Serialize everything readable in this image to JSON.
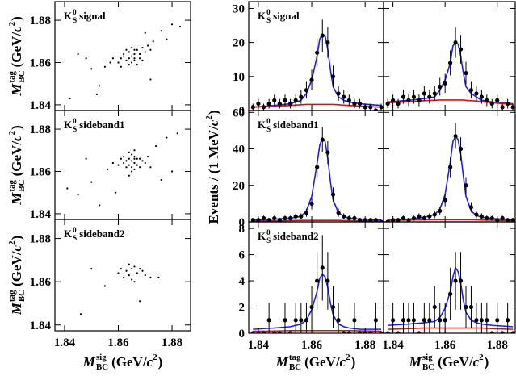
{
  "particle": {
    "symbol": "K",
    "sub": "S",
    "sup": "0"
  },
  "axis_titles": {
    "mass_tag": {
      "symbol": "M",
      "sup": "tag",
      "sub": "BC",
      "unit_open": "(GeV/",
      "unit_var": "c",
      "unit_pow": "2",
      "unit_close": ")"
    },
    "mass_sig": {
      "symbol": "M",
      "sup": "sig",
      "sub": "BC",
      "unit_open": "(GeV/",
      "unit_var": "c",
      "unit_pow": "2",
      "unit_close": ")"
    },
    "events": {
      "text": "Events / (1 MeV/",
      "unit_var": "c",
      "unit_pow": "2",
      "unit_close": ")"
    }
  },
  "chart_data": [
    {
      "type": "scatter",
      "label": "signal",
      "xlim": [
        1.8364,
        1.8869
      ],
      "ylim": [
        1.8373,
        1.8888
      ],
      "xticks": [
        1.84,
        1.86,
        1.88
      ],
      "yticks": [
        1.84,
        1.86,
        1.88
      ],
      "x": [
        1.862,
        1.864,
        1.866,
        1.865,
        1.867,
        1.863,
        1.868,
        1.861,
        1.869,
        1.866,
        1.864,
        1.86,
        1.87,
        1.865,
        1.867,
        1.862,
        1.871,
        1.858,
        1.866,
        1.863,
        1.868,
        1.865,
        1.872,
        1.857,
        1.869,
        1.864,
        1.866,
        1.873,
        1.855,
        1.861,
        1.845,
        1.85,
        1.876,
        1.878,
        1.88,
        1.853,
        1.842,
        1.872,
        1.848,
        1.883,
        1.852,
        1.87
      ],
      "y": [
        1.863,
        1.865,
        1.862,
        1.86,
        1.866,
        1.861,
        1.864,
        1.858,
        1.867,
        1.866,
        1.862,
        1.86,
        1.865,
        1.863,
        1.859,
        1.864,
        1.868,
        1.862,
        1.861,
        1.866,
        1.862,
        1.867,
        1.866,
        1.86,
        1.861,
        1.859,
        1.864,
        1.87,
        1.858,
        1.862,
        1.864,
        1.857,
        1.875,
        1.871,
        1.878,
        1.849,
        1.843,
        1.852,
        1.862,
        1.877,
        1.845,
        1.874
      ]
    },
    {
      "type": "scatter",
      "label": "sideband1",
      "xlim": [
        1.8364,
        1.8869
      ],
      "ylim": [
        1.8373,
        1.8888
      ],
      "xticks": [
        1.84,
        1.86,
        1.88
      ],
      "yticks": [
        1.84,
        1.86,
        1.88
      ],
      "x": [
        1.865,
        1.866,
        1.864,
        1.867,
        1.863,
        1.868,
        1.862,
        1.865,
        1.866,
        1.864,
        1.869,
        1.861,
        1.866,
        1.865,
        1.867,
        1.863,
        1.87,
        1.864,
        1.866,
        1.86,
        1.868,
        1.865,
        1.862,
        1.871,
        1.858,
        1.866,
        1.864,
        1.872,
        1.856,
        1.874,
        1.85,
        1.845,
        1.878,
        1.88,
        1.853,
        1.876,
        1.848,
        1.882,
        1.859,
        1.841
      ],
      "y": [
        1.865,
        1.864,
        1.866,
        1.863,
        1.865,
        1.866,
        1.864,
        1.862,
        1.867,
        1.863,
        1.865,
        1.866,
        1.861,
        1.868,
        1.866,
        1.862,
        1.864,
        1.869,
        1.866,
        1.863,
        1.862,
        1.86,
        1.867,
        1.867,
        1.864,
        1.87,
        1.858,
        1.862,
        1.861,
        1.872,
        1.855,
        1.849,
        1.876,
        1.86,
        1.844,
        1.856,
        1.866,
        1.878,
        1.85,
        1.852
      ]
    },
    {
      "type": "scatter",
      "label": "sideband2",
      "xlim": [
        1.8364,
        1.8869
      ],
      "ylim": [
        1.8373,
        1.8888
      ],
      "xticks": [
        1.84,
        1.86,
        1.88
      ],
      "yticks": [
        1.84,
        1.86,
        1.88
      ],
      "x": [
        1.863,
        1.865,
        1.867,
        1.864,
        1.866,
        1.868,
        1.862,
        1.869,
        1.865,
        1.87,
        1.861,
        1.866,
        1.864,
        1.872,
        1.86,
        1.855,
        1.85,
        1.846,
        1.868,
        1.875
      ],
      "y": [
        1.865,
        1.866,
        1.864,
        1.863,
        1.867,
        1.866,
        1.862,
        1.865,
        1.861,
        1.863,
        1.866,
        1.86,
        1.868,
        1.862,
        1.864,
        1.858,
        1.866,
        1.845,
        1.851,
        1.862
      ]
    },
    {
      "type": "errorbar",
      "label": "signal",
      "xlim": [
        1.8364,
        1.8869
      ],
      "ylim": [
        0,
        32
      ],
      "xticks": [
        1.84,
        1.86,
        1.88
      ],
      "yticks": [
        0,
        10,
        20,
        30
      ],
      "x": [
        1.838,
        1.84,
        1.842,
        1.844,
        1.846,
        1.848,
        1.85,
        1.852,
        1.854,
        1.856,
        1.858,
        1.86,
        1.862,
        1.864,
        1.866,
        1.868,
        1.87,
        1.872,
        1.874,
        1.876,
        1.878,
        1.88,
        1.882,
        1.884,
        1.886
      ],
      "values": [
        1,
        2,
        1,
        2,
        3,
        2,
        3,
        2,
        3,
        4,
        6,
        9,
        17,
        22,
        20,
        10,
        5,
        4,
        3,
        2,
        2,
        1,
        1,
        0,
        1
      ],
      "errors": [
        1,
        1.4,
        1,
        1.4,
        1.7,
        1.4,
        1.7,
        1.4,
        1.7,
        2,
        2.4,
        3,
        4.1,
        4.7,
        4.5,
        3.2,
        2.2,
        2,
        1.7,
        1.4,
        1.4,
        1,
        1,
        0,
        1
      ],
      "curve_x": [
        1.838,
        1.846,
        1.852,
        1.856,
        1.858,
        1.86,
        1.862,
        1.863,
        1.864,
        1.865,
        1.866,
        1.867,
        1.868,
        1.87,
        1.872,
        1.874,
        1.878,
        1.886
      ],
      "curves": [
        {
          "color": "#1f1fe0",
          "values": [
            1,
            1.5,
            2,
            3,
            5,
            9,
            16,
            21,
            22.5,
            22,
            18,
            12,
            7,
            4,
            3,
            2.5,
            2,
            1.5
          ]
        },
        {
          "color": "#e01010",
          "values": [
            1,
            1.3,
            1.5,
            1.7,
            1.8,
            1.8,
            1.8,
            1.8,
            1.8,
            1.8,
            1.8,
            1.8,
            1.8,
            1.7,
            1.6,
            1.5,
            1.3,
            1.0
          ]
        }
      ]
    },
    {
      "type": "errorbar",
      "label": null,
      "xlim": [
        1.8364,
        1.8869
      ],
      "ylim": [
        0,
        32
      ],
      "xticks": [
        1.84,
        1.86,
        1.88
      ],
      "yticks": [
        0,
        10,
        20,
        30
      ],
      "x": [
        1.838,
        1.84,
        1.842,
        1.844,
        1.846,
        1.848,
        1.85,
        1.852,
        1.854,
        1.856,
        1.858,
        1.86,
        1.862,
        1.864,
        1.866,
        1.868,
        1.87,
        1.872,
        1.874,
        1.876,
        1.878,
        1.88,
        1.882,
        1.884,
        1.886
      ],
      "values": [
        2,
        3,
        2,
        4,
        3,
        4,
        3,
        5,
        4,
        5,
        7,
        8,
        14,
        20,
        18,
        11,
        6,
        5,
        4,
        3,
        2,
        3,
        1,
        2,
        1
      ],
      "errors": [
        1.4,
        1.7,
        1.4,
        2,
        1.7,
        2,
        1.7,
        2.2,
        2,
        2.2,
        2.6,
        2.8,
        3.7,
        4.5,
        4.2,
        3.3,
        2.4,
        2.2,
        2,
        1.7,
        1.4,
        1.7,
        1,
        1.4,
        1
      ],
      "curve_x": [
        1.838,
        1.846,
        1.852,
        1.856,
        1.858,
        1.86,
        1.862,
        1.863,
        1.864,
        1.865,
        1.866,
        1.867,
        1.868,
        1.87,
        1.872,
        1.874,
        1.878,
        1.886
      ],
      "curves": [
        {
          "color": "#1f1fe0",
          "values": [
            2.5,
            3,
            3.5,
            4,
            6,
            9,
            14,
            19,
            20,
            19.5,
            16,
            11,
            7,
            5,
            4,
            3,
            2.5,
            2
          ]
        },
        {
          "color": "#e01010",
          "values": [
            2.3,
            2.6,
            2.9,
            3,
            3.1,
            3.1,
            3.1,
            3.1,
            3.1,
            3.1,
            3.1,
            3.1,
            3,
            2.9,
            2.8,
            2.6,
            2.3,
            1.8
          ]
        }
      ]
    },
    {
      "type": "errorbar",
      "label": "sideband1",
      "xlim": [
        1.8364,
        1.8869
      ],
      "ylim": [
        0,
        61
      ],
      "xticks": [
        1.84,
        1.86,
        1.88
      ],
      "yticks": [
        0,
        20,
        40,
        60
      ],
      "x": [
        1.838,
        1.84,
        1.842,
        1.844,
        1.846,
        1.848,
        1.85,
        1.852,
        1.854,
        1.856,
        1.858,
        1.86,
        1.862,
        1.864,
        1.866,
        1.868,
        1.87,
        1.872,
        1.874,
        1.876,
        1.878,
        1.88,
        1.882,
        1.884,
        1.886
      ],
      "values": [
        1,
        1,
        2,
        1,
        2,
        1,
        2,
        2,
        3,
        3,
        5,
        10,
        30,
        45,
        38,
        15,
        5,
        3,
        2,
        2,
        1,
        1,
        1,
        1,
        0
      ],
      "errors": [
        1,
        1,
        1.4,
        1,
        1.4,
        1,
        1.4,
        1.4,
        1.7,
        1.7,
        2.2,
        3.2,
        5.5,
        6.7,
        6.2,
        3.9,
        2.2,
        1.7,
        1.4,
        1.4,
        1,
        1,
        1,
        1,
        0
      ],
      "curve_x": [
        1.838,
        1.846,
        1.852,
        1.856,
        1.858,
        1.86,
        1.862,
        1.863,
        1.864,
        1.865,
        1.866,
        1.867,
        1.868,
        1.87,
        1.872,
        1.874,
        1.878,
        1.886
      ],
      "curves": [
        {
          "color": "#1f1fe0",
          "values": [
            1,
            1.5,
            2,
            3,
            6,
            14,
            32,
            42,
            46,
            44,
            35,
            22,
            12,
            5,
            3,
            2,
            1.5,
            1
          ]
        },
        {
          "color": "#e01010",
          "values": [
            0.5,
            0.6,
            0.7,
            0.8,
            0.8,
            0.8,
            0.8,
            0.8,
            0.8,
            0.8,
            0.8,
            0.8,
            0.8,
            0.8,
            0.7,
            0.7,
            0.6,
            0.5
          ]
        }
      ]
    },
    {
      "type": "errorbar",
      "label": null,
      "xlim": [
        1.8364,
        1.8869
      ],
      "ylim": [
        0,
        61
      ],
      "xticks": [
        1.84,
        1.86,
        1.88
      ],
      "yticks": [
        0,
        20,
        40,
        60
      ],
      "x": [
        1.838,
        1.84,
        1.842,
        1.844,
        1.846,
        1.848,
        1.85,
        1.852,
        1.854,
        1.856,
        1.858,
        1.86,
        1.862,
        1.864,
        1.866,
        1.868,
        1.87,
        1.872,
        1.874,
        1.876,
        1.878,
        1.88,
        1.882,
        1.884,
        1.886
      ],
      "values": [
        0,
        1,
        1,
        2,
        1,
        2,
        3,
        2,
        3,
        4,
        6,
        12,
        30,
        47,
        40,
        20,
        8,
        4,
        3,
        2,
        2,
        1,
        2,
        1,
        1
      ],
      "errors": [
        0,
        1,
        1,
        1.4,
        1,
        1.4,
        1.7,
        1.4,
        1.7,
        2,
        2.4,
        3.5,
        5.5,
        6.9,
        6.3,
        4.5,
        2.8,
        2,
        1.7,
        1.4,
        1.4,
        1,
        1.4,
        1,
        1
      ],
      "curve_x": [
        1.838,
        1.846,
        1.852,
        1.856,
        1.858,
        1.86,
        1.862,
        1.863,
        1.864,
        1.865,
        1.866,
        1.867,
        1.868,
        1.87,
        1.872,
        1.874,
        1.878,
        1.886
      ],
      "curves": [
        {
          "color": "#1f1fe0",
          "values": [
            1,
            1.5,
            2.5,
            4,
            7,
            15,
            33,
            44,
            47,
            45,
            37,
            25,
            14,
            6,
            3.5,
            2.5,
            1.8,
            1.2
          ]
        },
        {
          "color": "#e01010",
          "values": [
            0.8,
            1,
            1.1,
            1.2,
            1.2,
            1.2,
            1.2,
            1.2,
            1.2,
            1.2,
            1.2,
            1.2,
            1.2,
            1.2,
            1.1,
            1,
            0.9,
            0.7
          ]
        }
      ]
    },
    {
      "type": "errorbar",
      "label": "sideband2",
      "xlim": [
        1.8364,
        1.8869
      ],
      "ylim": [
        0,
        8.5
      ],
      "xticks": [
        1.84,
        1.86,
        1.88
      ],
      "yticks": [
        0,
        2,
        4,
        6,
        8
      ],
      "x": [
        1.838,
        1.84,
        1.842,
        1.844,
        1.846,
        1.848,
        1.85,
        1.852,
        1.854,
        1.856,
        1.858,
        1.86,
        1.862,
        1.864,
        1.866,
        1.868,
        1.87,
        1.872,
        1.874,
        1.876,
        1.878,
        1.88,
        1.882,
        1.884,
        1.886
      ],
      "values": [
        0,
        0,
        0,
        1,
        0,
        0,
        1,
        0,
        1,
        1,
        1,
        2,
        4,
        5,
        4,
        2,
        1,
        0,
        0,
        1,
        0,
        0,
        0,
        1,
        0
      ],
      "errors": [
        0,
        0,
        0,
        1.3,
        0,
        0,
        1.3,
        0,
        1.3,
        1.3,
        1.3,
        1.6,
        2.2,
        2.5,
        2.2,
        1.6,
        1.3,
        0,
        0,
        1.3,
        0,
        0,
        0,
        1.3,
        0
      ],
      "curve_x": [
        1.838,
        1.846,
        1.852,
        1.856,
        1.858,
        1.86,
        1.862,
        1.863,
        1.864,
        1.865,
        1.866,
        1.867,
        1.868,
        1.87,
        1.872,
        1.874,
        1.878,
        1.886
      ],
      "curves": [
        {
          "color": "#1f1fe0",
          "values": [
            0.3,
            0.4,
            0.5,
            0.7,
            1,
            1.8,
            3.2,
            4.2,
            4.5,
            4.3,
            3.5,
            2.3,
            1.4,
            0.7,
            0.5,
            0.4,
            0.3,
            0.3
          ]
        },
        {
          "color": "#e01010",
          "values": [
            0.15,
            0.17,
            0.2,
            0.2,
            0.2,
            0.2,
            0.2,
            0.2,
            0.2,
            0.2,
            0.2,
            0.2,
            0.2,
            0.2,
            0.2,
            0.2,
            0.18,
            0.15
          ]
        }
      ]
    },
    {
      "type": "errorbar",
      "label": null,
      "xlim": [
        1.8364,
        1.8869
      ],
      "ylim": [
        0,
        8.5
      ],
      "xticks": [
        1.84,
        1.86,
        1.88
      ],
      "yticks": [
        0,
        2,
        4,
        6,
        8
      ],
      "x": [
        1.838,
        1.84,
        1.842,
        1.844,
        1.846,
        1.848,
        1.85,
        1.852,
        1.854,
        1.856,
        1.858,
        1.86,
        1.862,
        1.864,
        1.866,
        1.868,
        1.87,
        1.872,
        1.874,
        1.876,
        1.878,
        1.88,
        1.882,
        1.884,
        1.886
      ],
      "values": [
        0,
        1,
        0,
        1,
        1,
        1,
        0,
        1,
        1,
        2,
        1,
        1,
        3,
        4,
        4,
        2,
        2,
        1,
        1,
        1,
        0,
        1,
        0,
        1,
        0
      ],
      "errors": [
        0,
        1.3,
        0,
        1.3,
        1.3,
        1.3,
        0,
        1.3,
        1.3,
        1.6,
        1.3,
        1.3,
        2,
        2.2,
        2.2,
        1.6,
        1.6,
        1.3,
        1.3,
        1.3,
        0,
        1.3,
        0,
        1.3,
        0
      ],
      "curve_x": [
        1.838,
        1.846,
        1.852,
        1.856,
        1.858,
        1.86,
        1.862,
        1.863,
        1.864,
        1.865,
        1.866,
        1.867,
        1.868,
        1.87,
        1.872,
        1.874,
        1.878,
        1.886
      ],
      "curves": [
        {
          "color": "#1f1fe0",
          "values": [
            0.6,
            0.7,
            0.8,
            0.9,
            1.2,
            1.9,
            3.2,
            4.3,
            5,
            4.7,
            3.8,
            2.5,
            1.6,
            1,
            0.8,
            0.7,
            0.6,
            0.5
          ]
        },
        {
          "color": "#e01010",
          "values": [
            0.3,
            0.35,
            0.4,
            0.4,
            0.4,
            0.4,
            0.4,
            0.4,
            0.4,
            0.4,
            0.4,
            0.4,
            0.4,
            0.4,
            0.4,
            0.4,
            0.35,
            0.3
          ]
        }
      ]
    }
  ]
}
